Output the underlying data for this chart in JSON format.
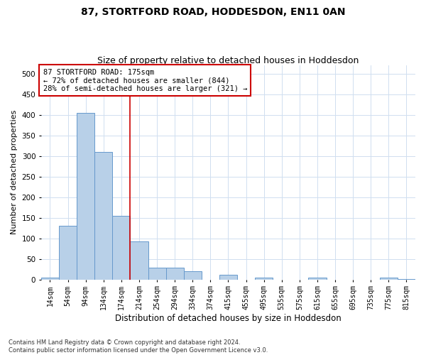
{
  "title": "87, STORTFORD ROAD, HODDESDON, EN11 0AN",
  "subtitle": "Size of property relative to detached houses in Hoddesdon",
  "xlabel": "Distribution of detached houses by size in Hoddesdon",
  "ylabel": "Number of detached properties",
  "bar_labels": [
    "14sqm",
    "54sqm",
    "94sqm",
    "134sqm",
    "174sqm",
    "214sqm",
    "254sqm",
    "294sqm",
    "334sqm",
    "374sqm",
    "415sqm",
    "455sqm",
    "495sqm",
    "535sqm",
    "575sqm",
    "615sqm",
    "655sqm",
    "695sqm",
    "735sqm",
    "775sqm",
    "815sqm"
  ],
  "bar_values": [
    5,
    130,
    405,
    310,
    155,
    92,
    28,
    28,
    20,
    0,
    11,
    0,
    5,
    0,
    0,
    5,
    0,
    0,
    0,
    5,
    1
  ],
  "bar_color": "#b8d0e8",
  "bar_edge_color": "#6699cc",
  "grid_color": "#d0dff0",
  "background_color": "#ffffff",
  "property_line_x": 4.5,
  "annotation_text": "87 STORTFORD ROAD: 175sqm\n← 72% of detached houses are smaller (844)\n28% of semi-detached houses are larger (321) →",
  "annotation_box_color": "#ffffff",
  "annotation_box_edge_color": "#cc0000",
  "vline_color": "#cc0000",
  "ylim": [
    0,
    520
  ],
  "yticks": [
    0,
    50,
    100,
    150,
    200,
    250,
    300,
    350,
    400,
    450,
    500
  ],
  "footnote": "Contains HM Land Registry data © Crown copyright and database right 2024.\nContains public sector information licensed under the Open Government Licence v3.0.",
  "title_fontsize": 10,
  "subtitle_fontsize": 9,
  "xlabel_fontsize": 8.5,
  "ylabel_fontsize": 8,
  "annotation_fontsize": 7.5,
  "tick_fontsize": 7,
  "ytick_fontsize": 7.5,
  "footnote_fontsize": 6
}
